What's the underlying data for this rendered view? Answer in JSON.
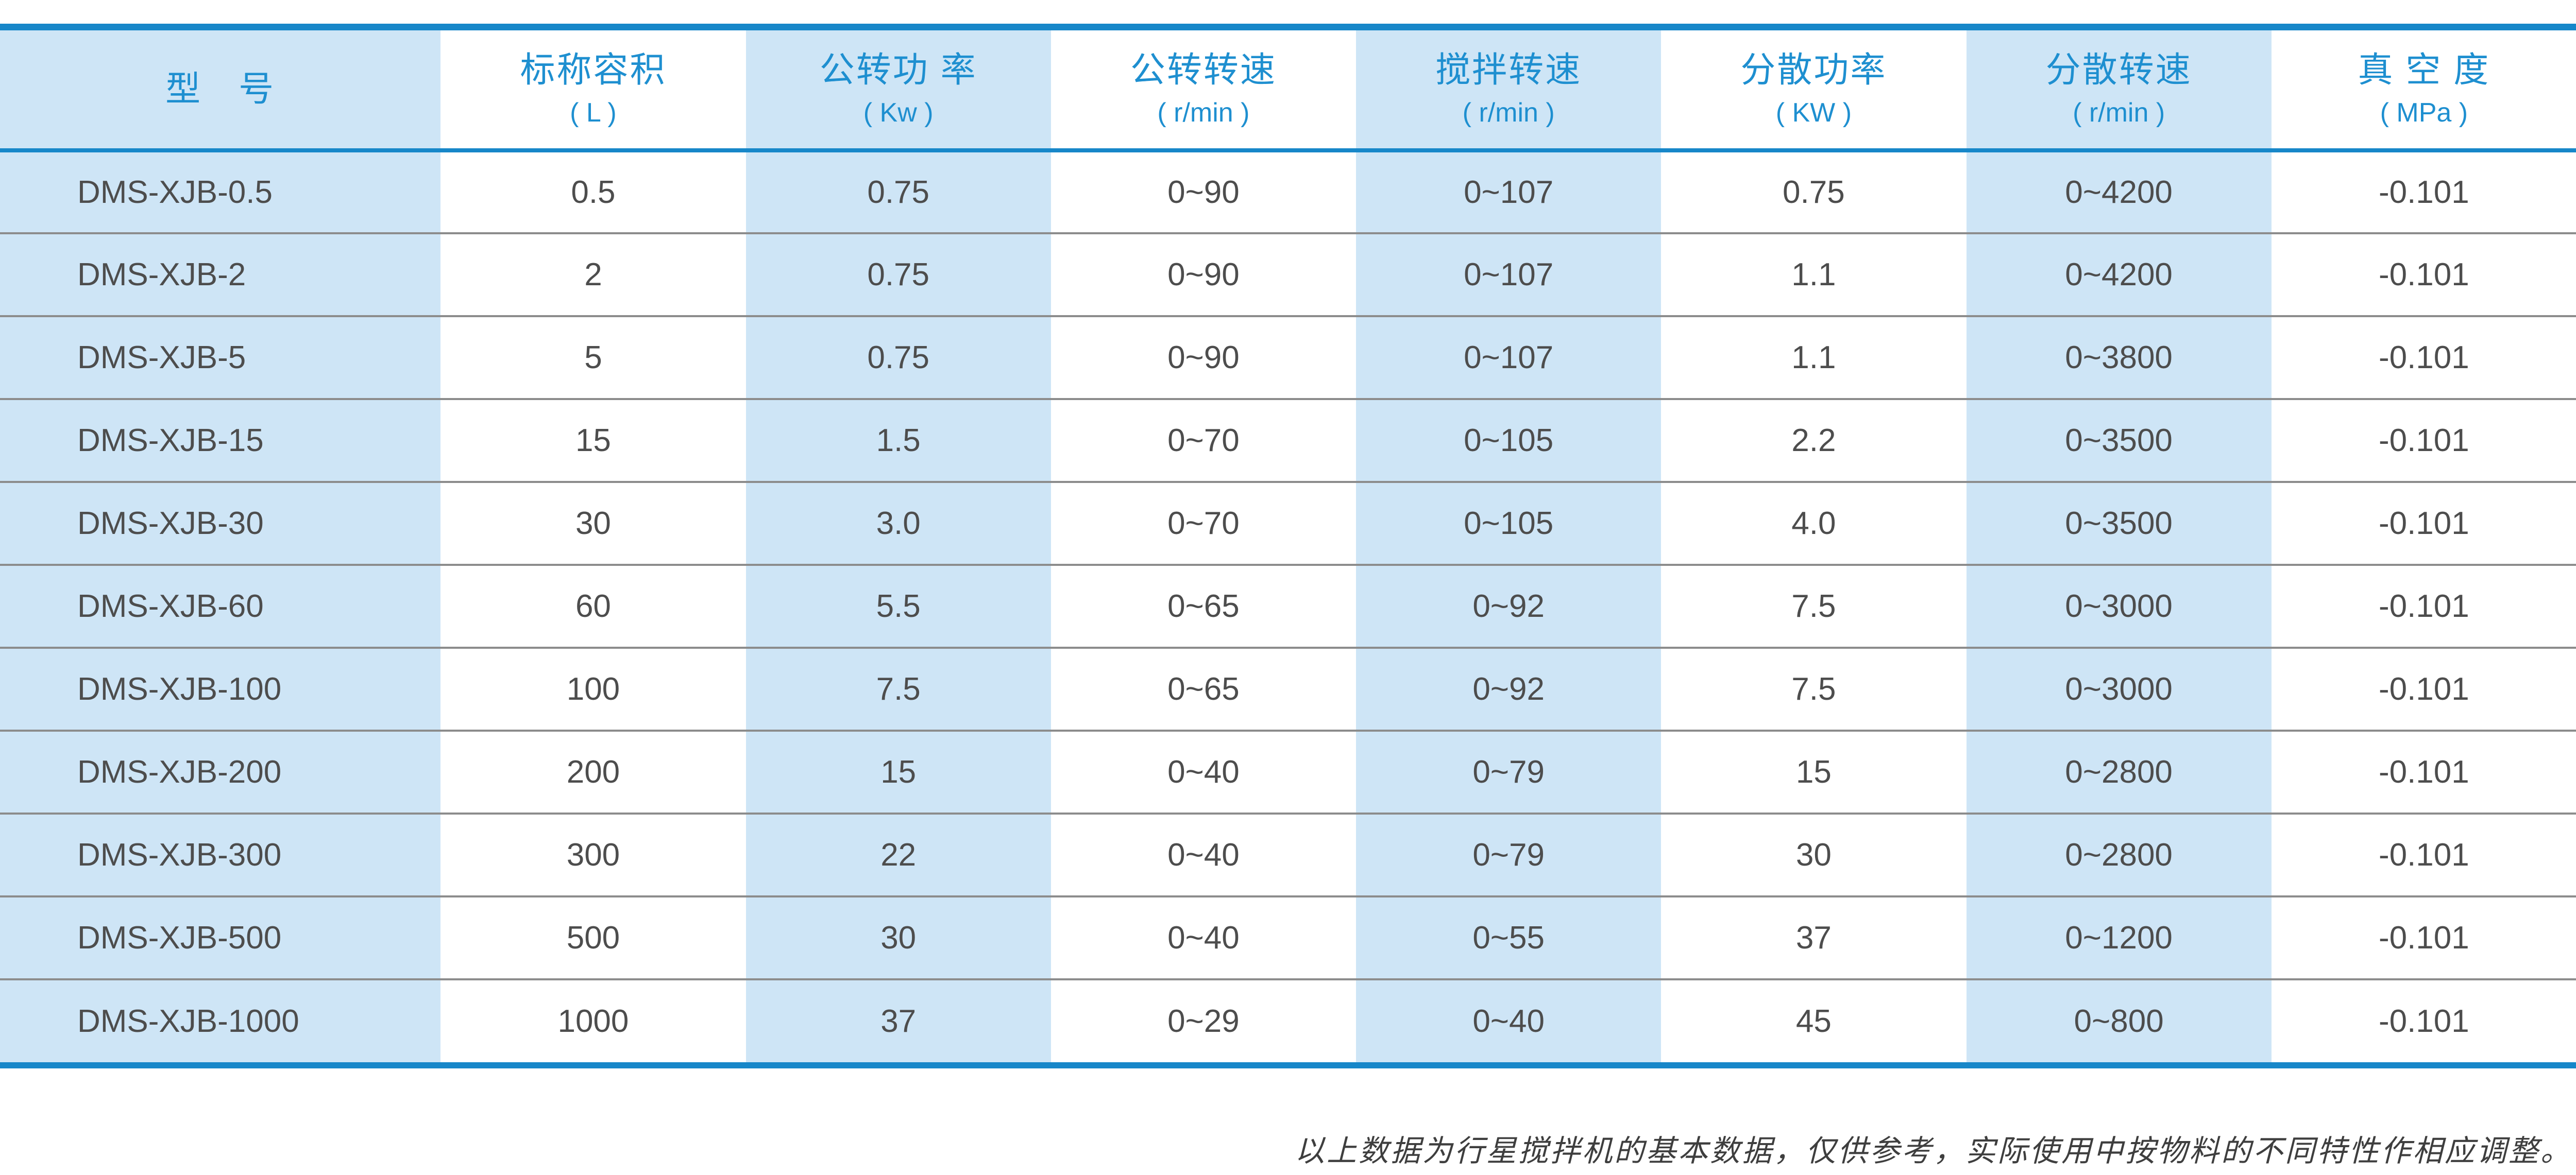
{
  "colors": {
    "accent_blue": "#1787c9",
    "header_text_blue": "#1e8fd0",
    "cell_blue": "#cee5f6",
    "body_text": "#4d4d4d",
    "row_separator_gray": "#8c8c8c",
    "footer_text": "#3e3e3e"
  },
  "table": {
    "columns": [
      {
        "label": "型　号",
        "unit": ""
      },
      {
        "label": "标称容积",
        "unit": "( L )"
      },
      {
        "label": "公转功 率",
        "unit": "( Kw )"
      },
      {
        "label": "公转转速",
        "unit": "( r/min )"
      },
      {
        "label": "搅拌转速",
        "unit": "( r/min )"
      },
      {
        "label": "分散功率",
        "unit": "( KW )"
      },
      {
        "label": "分散转速",
        "unit": "( r/min )"
      },
      {
        "label": "真 空 度",
        "unit": "( MPa )"
      }
    ],
    "rows": [
      [
        "DMS-XJB-0.5",
        "0.5",
        "0.75",
        "0~90",
        "0~107",
        "0.75",
        "0~4200",
        "-0.101"
      ],
      [
        "DMS-XJB-2",
        "2",
        "0.75",
        "0~90",
        "0~107",
        "1.1",
        "0~4200",
        "-0.101"
      ],
      [
        "DMS-XJB-5",
        "5",
        "0.75",
        "0~90",
        "0~107",
        "1.1",
        "0~3800",
        "-0.101"
      ],
      [
        "DMS-XJB-15",
        "15",
        "1.5",
        "0~70",
        "0~105",
        "2.2",
        "0~3500",
        "-0.101"
      ],
      [
        "DMS-XJB-30",
        "30",
        "3.0",
        "0~70",
        "0~105",
        "4.0",
        "0~3500",
        "-0.101"
      ],
      [
        "DMS-XJB-60",
        "60",
        "5.5",
        "0~65",
        "0~92",
        "7.5",
        "0~3000",
        "-0.101"
      ],
      [
        "DMS-XJB-100",
        "100",
        "7.5",
        "0~65",
        "0~92",
        "7.5",
        "0~3000",
        "-0.101"
      ],
      [
        "DMS-XJB-200",
        "200",
        "15",
        "0~40",
        "0~79",
        "15",
        "0~2800",
        "-0.101"
      ],
      [
        "DMS-XJB-300",
        "300",
        "22",
        "0~40",
        "0~79",
        "30",
        "0~2800",
        "-0.101"
      ],
      [
        "DMS-XJB-500",
        "500",
        "30",
        "0~40",
        "0~55",
        "37",
        "0~1200",
        "-0.101"
      ],
      [
        "DMS-XJB-1000",
        "1000",
        "37",
        "0~29",
        "0~40",
        "45",
        "0~800",
        "-0.101"
      ]
    ]
  },
  "footer": {
    "note": "以上数据为行星搅拌机的基本数据，仅供参考，实际使用中按物料的不同特性作相应调整。"
  }
}
